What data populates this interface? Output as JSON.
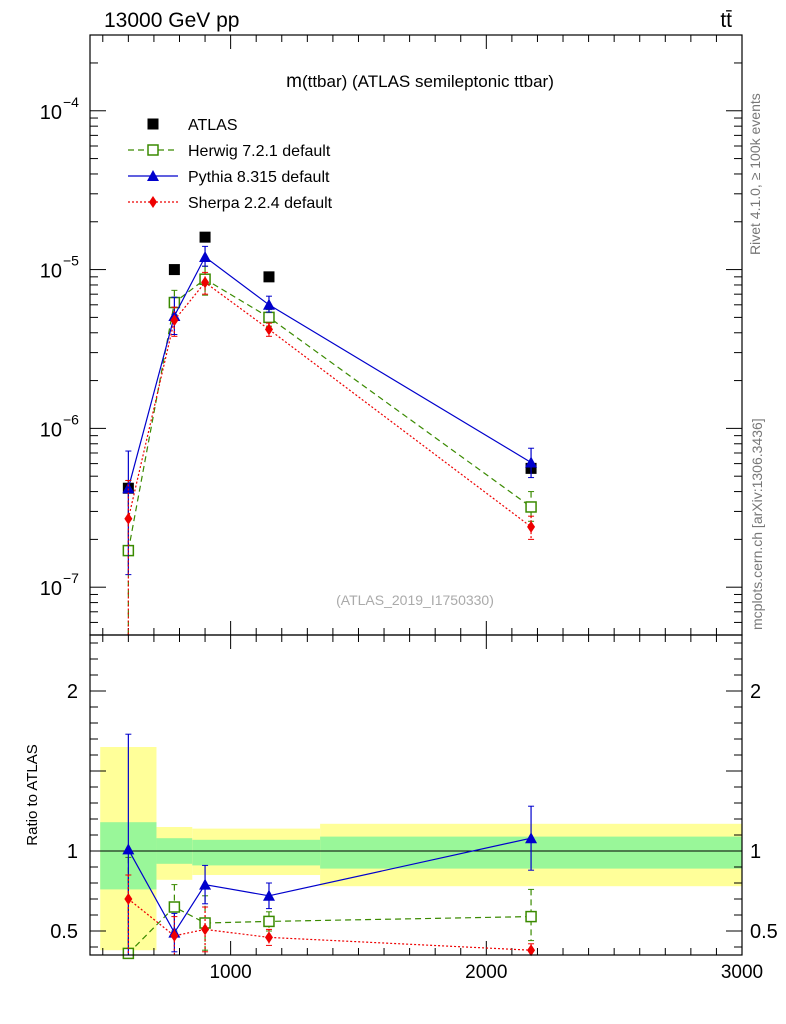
{
  "header": {
    "energy_label": "13000 GeV pp",
    "process_label": "tt̄"
  },
  "side_labels": {
    "rivet": "Rivet 4.1.0, ≥ 100k events",
    "mcplots": "mcplots.cern.ch [arXiv:1306.3436]"
  },
  "chart_data": [
    {
      "type": "scatter",
      "panel": "main",
      "title": "m(ttbar) (ATLAS semileptonic ttbar)",
      "title_m": "m",
      "title_rest": "(ttbar) (ATLAS semileptonic ttbar)",
      "watermark": "(ATLAS_2019_I1750330)",
      "yscale": "log",
      "xlim": [
        450,
        3000
      ],
      "ylim": [
        5e-08,
        0.0003
      ],
      "y_ticks": [
        {
          "value": 0.0001,
          "base": "10",
          "exp": "−4"
        },
        {
          "value": 1e-05,
          "base": "10",
          "exp": "−5"
        },
        {
          "value": 1e-06,
          "base": "10",
          "exp": "−6"
        },
        {
          "value": 1e-07,
          "base": "10",
          "exp": "−7"
        }
      ],
      "legend_position": "top-left",
      "series": [
        {
          "name": "ATLAS",
          "color": "#000000",
          "marker": "filled-square",
          "line": "none",
          "x": [
            600,
            780,
            900,
            1150,
            2175
          ],
          "y": [
            4.2e-07,
            1e-05,
            1.6e-05,
            9e-06,
            5.6e-07
          ]
        },
        {
          "name": "Herwig 7.2.1 default",
          "color": "#3a8a00",
          "marker": "open-square",
          "line": "dashed",
          "x": [
            600,
            780,
            900,
            1150,
            2175
          ],
          "y": [
            1.7e-07,
            6.2e-06,
            8.7e-06,
            5e-06,
            3.2e-07
          ],
          "err_low": [
            1.7e-07,
            1e-06,
            1.8e-06,
            6e-07,
            6e-08
          ],
          "err_high": [
            3e-07,
            1.2e-06,
            1.8e-06,
            6e-07,
            8e-08
          ]
        },
        {
          "name": "Pythia 8.315 default",
          "color": "#0000cc",
          "marker": "filled-triangle",
          "line": "solid",
          "x": [
            600,
            780,
            900,
            1150,
            2175
          ],
          "y": [
            4.2e-07,
            5.1e-06,
            1.2e-05,
            6e-06,
            6.1e-07
          ],
          "err_low": [
            3e-07,
            1.2e-06,
            1.5e-06,
            6e-07,
            1.2e-07
          ],
          "err_high": [
            3e-07,
            1.6e-06,
            2e-06,
            8e-07,
            1.4e-07
          ]
        },
        {
          "name": "Sherpa 2.2.4 default",
          "color": "#ee0000",
          "marker": "filled-diamond",
          "line": "dotted",
          "x": [
            600,
            780,
            900,
            1150,
            2175
          ],
          "y": [
            2.7e-07,
            4.8e-06,
            8.3e-06,
            4.2e-06,
            2.4e-07
          ],
          "err_low": [
            2.7e-07,
            1e-06,
            1.3e-06,
            4e-07,
            4e-08
          ],
          "err_high": [
            2e-07,
            1e-06,
            1.3e-06,
            4e-07,
            4e-08
          ]
        }
      ]
    },
    {
      "type": "scatter",
      "panel": "ratio",
      "ylabel": "Ratio to ATLAS",
      "xlim": [
        450,
        3000
      ],
      "ylim": [
        0.35,
        2.35
      ],
      "x_ticks": [
        1000,
        2000,
        3000
      ],
      "y_ticks": [
        {
          "value": 0.5,
          "label": "0.5"
        },
        {
          "value": 1,
          "label": "1"
        },
        {
          "value": 2,
          "label": "2"
        }
      ],
      "bands": [
        {
          "x0": 490,
          "x1": 710,
          "inner": [
            0.76,
            1.18
          ],
          "outer": [
            0.38,
            1.65
          ]
        },
        {
          "x0": 710,
          "x1": 850,
          "inner": [
            0.92,
            1.08
          ],
          "outer": [
            0.82,
            1.15
          ]
        },
        {
          "x0": 850,
          "x1": 1350,
          "inner": [
            0.91,
            1.07
          ],
          "outer": [
            0.85,
            1.14
          ]
        },
        {
          "x0": 1350,
          "x1": 3000,
          "inner": [
            0.89,
            1.09
          ],
          "outer": [
            0.78,
            1.17
          ]
        }
      ],
      "series": [
        {
          "name": "Herwig 7.2.1 default",
          "color": "#3a8a00",
          "marker": "open-square",
          "line": "dashed",
          "x": [
            600,
            780,
            900,
            1150,
            2175
          ],
          "y": [
            0.36,
            0.65,
            0.55,
            0.56,
            0.59
          ],
          "err_low": [
            0.36,
            0.15,
            0.17,
            0.06,
            0.15
          ],
          "err_high": [
            0.6,
            0.14,
            0.17,
            0.06,
            0.17
          ]
        },
        {
          "name": "Pythia 8.315 default",
          "color": "#0000cc",
          "marker": "filled-triangle",
          "line": "solid",
          "x": [
            600,
            780,
            900,
            1150,
            2175
          ],
          "y": [
            1.01,
            0.49,
            0.79,
            0.72,
            1.08
          ],
          "err_low": [
            0.72,
            0.12,
            0.12,
            0.08,
            0.2
          ],
          "err_high": [
            0.72,
            0.12,
            0.12,
            0.08,
            0.2
          ]
        },
        {
          "name": "Sherpa 2.2.4 default",
          "color": "#ee0000",
          "marker": "filled-diamond",
          "line": "dotted",
          "x": [
            600,
            780,
            900,
            1150,
            2175
          ],
          "y": [
            0.7,
            0.47,
            0.51,
            0.46,
            0.38
          ],
          "err_low": [
            0.35,
            0.12,
            0.14,
            0.05,
            0.04
          ],
          "err_high": [
            0.15,
            0.12,
            0.14,
            0.05,
            0.04
          ]
        }
      ]
    }
  ]
}
